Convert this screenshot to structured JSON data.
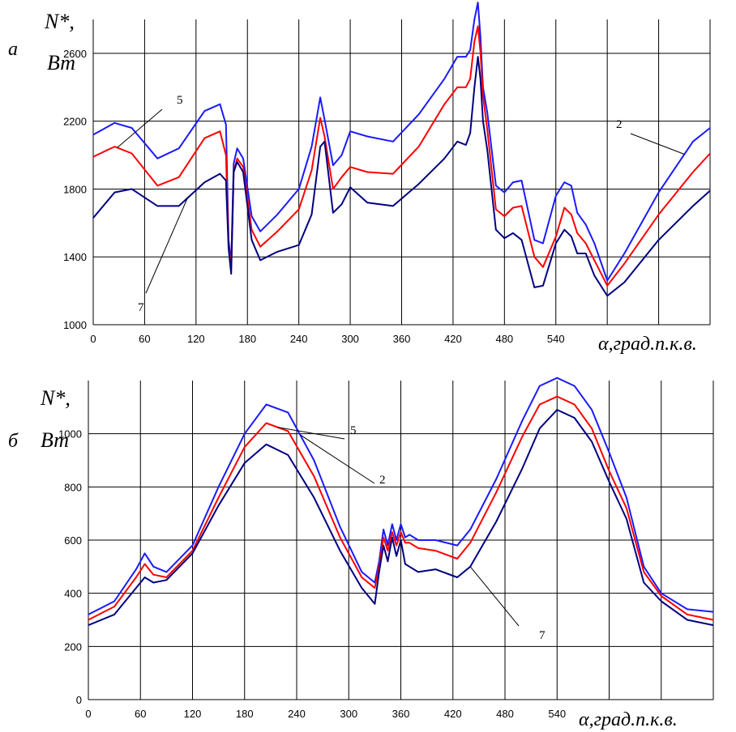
{
  "chart_data": [
    {
      "type": "line",
      "panel_label": "а",
      "ylabel": "N*,",
      "ylabel_unit": "Вт",
      "xlabel": "α,град.п.к.в.",
      "xlim": [
        0,
        720
      ],
      "ylim": [
        1000,
        2800
      ],
      "xticks": [
        0,
        60,
        120,
        180,
        240,
        300,
        360,
        420,
        480,
        540
      ],
      "yticks": [
        1000,
        1400,
        1800,
        2200,
        2600
      ],
      "grid": true,
      "annotations": [
        {
          "text": "5",
          "series": "5"
        },
        {
          "text": "2",
          "series": "2"
        },
        {
          "text": "7",
          "series": "7"
        }
      ],
      "series": [
        {
          "name": "2",
          "color": "#1a1aff",
          "x": [
            0,
            25,
            45,
            75,
            100,
            130,
            148,
            155,
            158,
            161,
            164,
            168,
            175,
            185,
            195,
            215,
            240,
            255,
            265,
            270,
            280,
            290,
            300,
            320,
            350,
            380,
            410,
            425,
            435,
            440,
            445,
            449,
            452,
            455,
            460,
            470,
            480,
            490,
            500,
            515,
            525,
            540,
            550,
            558,
            565,
            575,
            585,
            600,
            620,
            660,
            700,
            720
          ],
          "y": [
            2120,
            2190,
            2160,
            1980,
            2040,
            2260,
            2300,
            2180,
            1500,
            1360,
            1950,
            2040,
            1980,
            1640,
            1550,
            1650,
            1800,
            2050,
            2340,
            2210,
            1940,
            2000,
            2140,
            2110,
            2080,
            2240,
            2450,
            2580,
            2580,
            2620,
            2800,
            2900,
            2700,
            2400,
            2250,
            1820,
            1780,
            1840,
            1850,
            1500,
            1480,
            1760,
            1840,
            1820,
            1660,
            1590,
            1480,
            1260,
            1420,
            1780,
            2080,
            2160
          ]
        },
        {
          "name": "5",
          "color": "#ff0000",
          "x": [
            0,
            25,
            45,
            75,
            100,
            130,
            148,
            155,
            158,
            161,
            164,
            168,
            175,
            185,
            195,
            215,
            240,
            255,
            265,
            270,
            280,
            290,
            300,
            320,
            350,
            380,
            410,
            425,
            435,
            440,
            445,
            449,
            452,
            455,
            460,
            470,
            480,
            490,
            500,
            515,
            525,
            540,
            550,
            558,
            565,
            575,
            585,
            600,
            620,
            660,
            700,
            720
          ],
          "y": [
            1990,
            2050,
            2010,
            1820,
            1870,
            2100,
            2140,
            2000,
            1460,
            1330,
            1900,
            1980,
            1930,
            1560,
            1460,
            1550,
            1680,
            1910,
            2220,
            2110,
            1800,
            1870,
            1930,
            1900,
            1890,
            2050,
            2300,
            2400,
            2400,
            2450,
            2670,
            2760,
            2610,
            2350,
            2150,
            1680,
            1640,
            1690,
            1700,
            1400,
            1340,
            1520,
            1690,
            1650,
            1540,
            1480,
            1380,
            1230,
            1360,
            1650,
            1900,
            2010
          ]
        },
        {
          "name": "7",
          "color": "#000080",
          "x": [
            0,
            25,
            45,
            75,
            100,
            130,
            148,
            155,
            158,
            161,
            164,
            168,
            175,
            185,
            195,
            215,
            240,
            255,
            265,
            270,
            280,
            290,
            300,
            320,
            350,
            380,
            410,
            425,
            435,
            440,
            445,
            449,
            452,
            455,
            460,
            470,
            480,
            490,
            500,
            515,
            525,
            540,
            550,
            558,
            565,
            575,
            585,
            600,
            620,
            660,
            700,
            720
          ],
          "y": [
            1630,
            1780,
            1800,
            1700,
            1700,
            1840,
            1890,
            1850,
            1450,
            1300,
            1900,
            1960,
            1900,
            1500,
            1380,
            1430,
            1470,
            1650,
            2050,
            2080,
            1660,
            1710,
            1810,
            1720,
            1700,
            1830,
            1980,
            2080,
            2060,
            2130,
            2400,
            2580,
            2450,
            2200,
            2030,
            1560,
            1510,
            1540,
            1500,
            1220,
            1230,
            1480,
            1560,
            1520,
            1420,
            1420,
            1290,
            1170,
            1250,
            1500,
            1700,
            1790
          ]
        }
      ]
    },
    {
      "type": "line",
      "panel_label": "б",
      "ylabel": "N*,",
      "ylabel_unit": "Вт",
      "xlabel": "α,град.п.к.в.",
      "xlim": [
        0,
        720
      ],
      "ylim": [
        0,
        1200
      ],
      "xticks": [
        0,
        60,
        120,
        180,
        240,
        300,
        360,
        420,
        480,
        540
      ],
      "yticks": [
        0,
        200,
        400,
        600,
        800,
        1000
      ],
      "grid": true,
      "annotations": [
        {
          "text": "5",
          "series": "5"
        },
        {
          "text": "2",
          "series": "2"
        },
        {
          "text": "7",
          "series": "7"
        }
      ],
      "series": [
        {
          "name": "2",
          "color": "#1a1aff",
          "x": [
            0,
            30,
            55,
            65,
            75,
            90,
            120,
            150,
            180,
            205,
            230,
            260,
            290,
            315,
            330,
            335,
            340,
            345,
            350,
            355,
            360,
            365,
            370,
            380,
            400,
            425,
            440,
            470,
            500,
            520,
            540,
            560,
            580,
            600,
            620,
            640,
            660,
            690,
            720
          ],
          "y": [
            320,
            370,
            490,
            550,
            500,
            480,
            580,
            800,
            1000,
            1110,
            1080,
            900,
            650,
            480,
            440,
            520,
            640,
            580,
            660,
            600,
            660,
            610,
            620,
            600,
            600,
            580,
            640,
            830,
            1050,
            1180,
            1210,
            1180,
            1090,
            930,
            760,
            500,
            400,
            340,
            330
          ]
        },
        {
          "name": "5",
          "color": "#ff0000",
          "x": [
            0,
            30,
            55,
            65,
            75,
            90,
            120,
            150,
            180,
            205,
            230,
            260,
            290,
            315,
            330,
            335,
            340,
            345,
            350,
            355,
            360,
            365,
            370,
            380,
            400,
            425,
            440,
            470,
            500,
            520,
            540,
            560,
            580,
            600,
            620,
            640,
            660,
            690,
            720
          ],
          "y": [
            300,
            350,
            460,
            510,
            470,
            460,
            560,
            760,
            950,
            1040,
            1010,
            840,
            610,
            460,
            420,
            500,
            610,
            560,
            630,
            580,
            630,
            590,
            590,
            570,
            560,
            530,
            590,
            780,
            990,
            1110,
            1140,
            1110,
            1020,
            860,
            720,
            480,
            390,
            320,
            300
          ]
        },
        {
          "name": "7",
          "color": "#000080",
          "x": [
            0,
            30,
            55,
            65,
            75,
            90,
            120,
            150,
            180,
            205,
            230,
            260,
            290,
            315,
            330,
            335,
            340,
            345,
            350,
            355,
            360,
            365,
            370,
            380,
            400,
            425,
            440,
            470,
            500,
            520,
            540,
            560,
            580,
            600,
            620,
            640,
            660,
            690,
            720
          ],
          "y": [
            280,
            320,
            420,
            460,
            440,
            450,
            550,
            730,
            890,
            960,
            920,
            760,
            560,
            420,
            360,
            480,
            580,
            520,
            610,
            540,
            600,
            510,
            500,
            480,
            490,
            460,
            500,
            670,
            870,
            1020,
            1090,
            1060,
            970,
            820,
            680,
            440,
            370,
            300,
            280
          ]
        }
      ]
    }
  ]
}
